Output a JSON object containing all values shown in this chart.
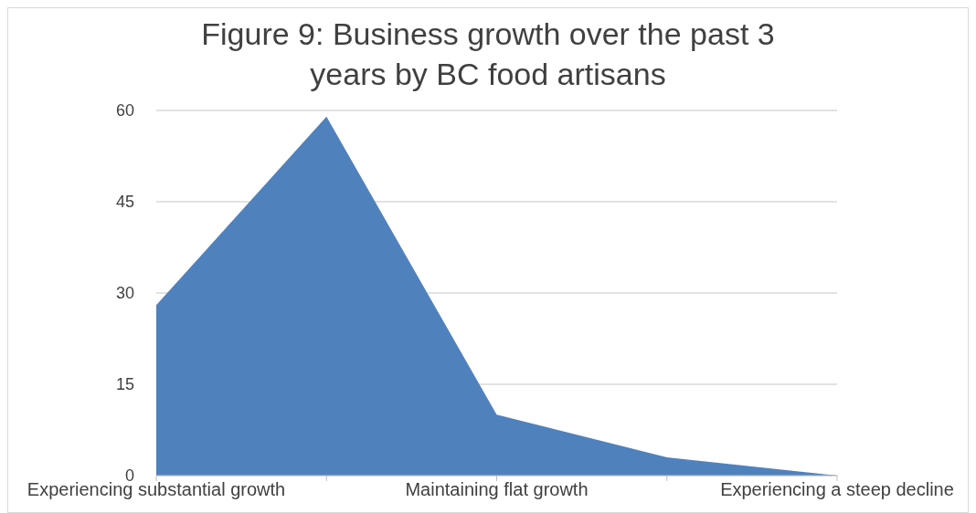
{
  "chart_data": {
    "type": "area",
    "title": "Figure 9: Business growth over the past 3 years by BC food artisans",
    "categories": [
      "Experiencing substantial growth",
      null,
      "Maintaining flat growth",
      null,
      "Experiencing a steep decline"
    ],
    "values": [
      28,
      59,
      10,
      3,
      0
    ],
    "color": "#4f81bd",
    "ylim": [
      0,
      60
    ],
    "yticks": [
      0,
      15,
      30,
      45,
      60
    ],
    "grid": "y"
  }
}
